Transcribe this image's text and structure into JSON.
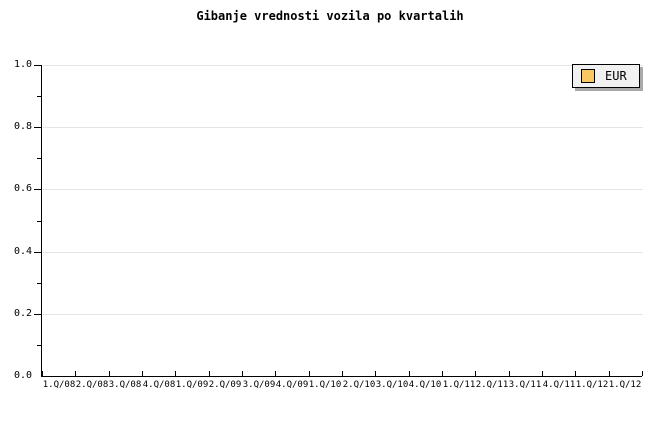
{
  "title": "Gibanje vrednosti vozila po kvartalih",
  "legend": {
    "label": "EUR",
    "swatch_color": "#f9c863",
    "position": "top-right"
  },
  "y_axis": {
    "tick_labels": [
      "1.0",
      "0.8",
      "0.6",
      "0.4",
      "0.2",
      "0.0"
    ]
  },
  "x_axis": {
    "tick_labels": [
      "1.Q/08",
      "2.Q/08",
      "3.Q/08",
      "4.Q/08",
      "1.Q/09",
      "2.Q/09",
      "3.Q/09",
      "4.Q/09",
      "1.Q/10",
      "2.Q/10",
      "3.Q/10",
      "4.Q/10",
      "1.Q/11",
      "2.Q/11",
      "3.Q/11",
      "4.Q/11",
      "1.Q/12",
      "1.Q/12"
    ]
  },
  "colors": {
    "background": "#ffffff",
    "text": "#000000",
    "axis": "#000000",
    "gridline": "#e4e4e4",
    "legend_background": "#f1f1f1",
    "legend_border": "#000000",
    "legend_shadow": "#a9a9a9",
    "swatch": "#f9c863"
  },
  "chart_data": {
    "type": "line",
    "title": "Gibanje vrednosti vozila po kvartalih",
    "categories": [
      "1.Q/08",
      "2.Q/08",
      "3.Q/08",
      "4.Q/08",
      "1.Q/09",
      "2.Q/09",
      "3.Q/09",
      "4.Q/09",
      "1.Q/10",
      "2.Q/10",
      "3.Q/10",
      "4.Q/10",
      "1.Q/11",
      "2.Q/11",
      "3.Q/11",
      "4.Q/11",
      "1.Q/12",
      "1.Q/12"
    ],
    "series": [
      {
        "name": "EUR",
        "values": []
      }
    ],
    "xlabel": "",
    "ylabel": "",
    "ylim": [
      0.0,
      1.0
    ],
    "ytick_step": 0.2,
    "yminor_tick_step": 0.1,
    "ytick_labels": [
      "1.0",
      "0.8",
      "0.6",
      "0.4",
      "0.2",
      "0.0"
    ],
    "grid": "horizontal-major-only",
    "legend_position": "top-right",
    "plot_is_empty": true
  }
}
